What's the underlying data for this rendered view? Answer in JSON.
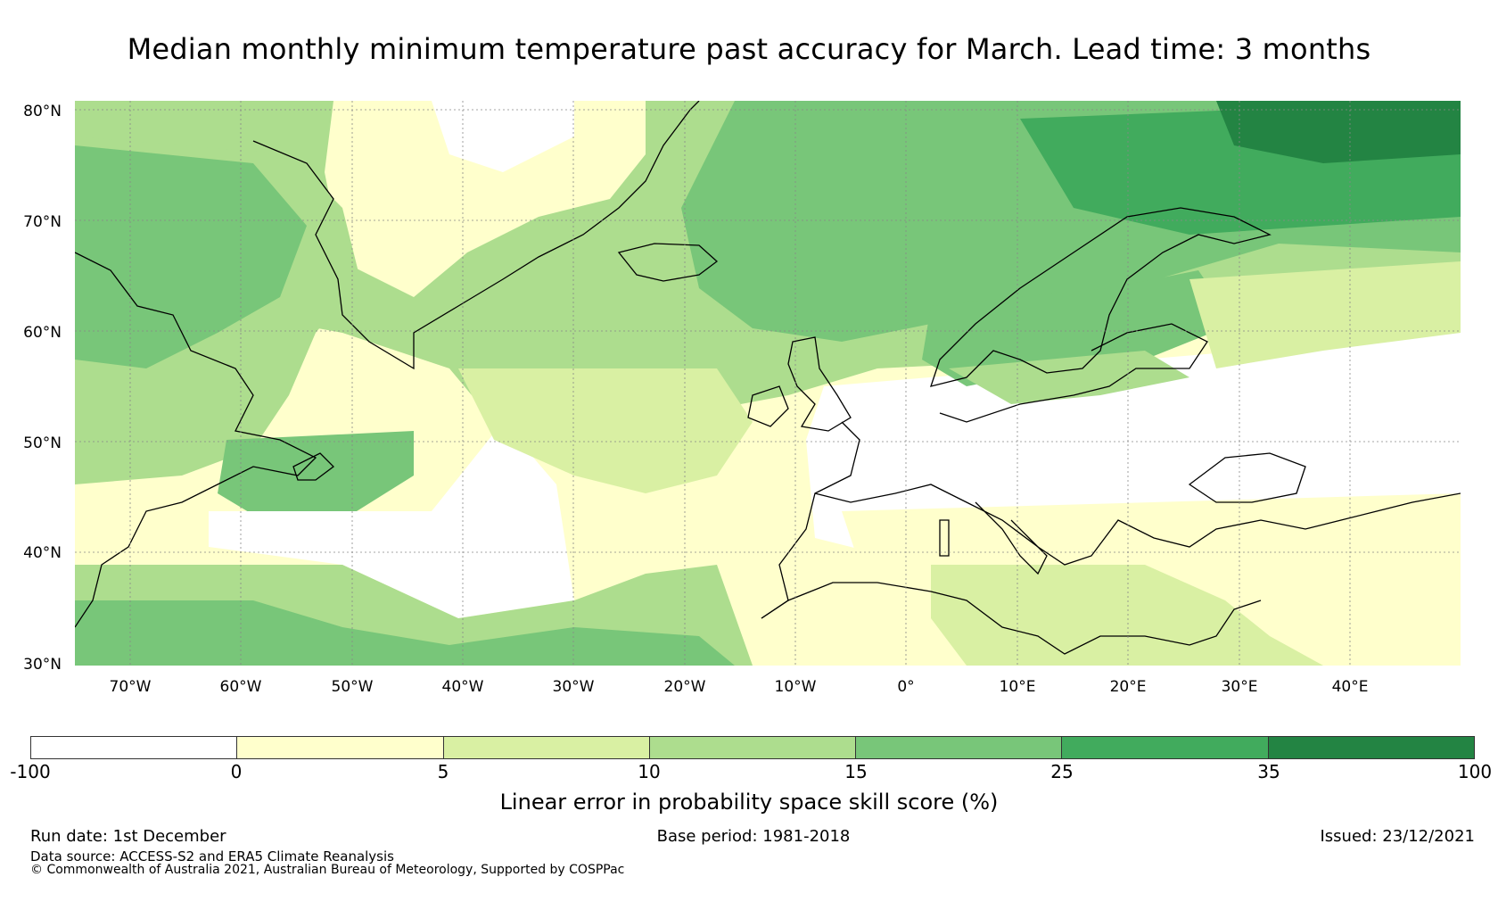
{
  "title": "Median monthly minimum temperature past accuracy for March. Lead time: 3 months",
  "map": {
    "latitude_labels": [
      "80°N",
      "70°N",
      "60°N",
      "50°N",
      "40°N",
      "30°N"
    ],
    "longitude_labels": [
      "70°W",
      "60°W",
      "50°W",
      "40°W",
      "30°W",
      "20°W",
      "10°W",
      "0°",
      "10°E",
      "20°E",
      "30°E",
      "40°E"
    ],
    "extent": {
      "lon_min": -75,
      "lon_max": 50,
      "lat_min": 30,
      "lat_max": 81
    }
  },
  "colorbar": {
    "label": "Linear error in probability space skill score (%)",
    "ticks": [
      "-100",
      "0",
      "5",
      "10",
      "15",
      "25",
      "35",
      "100"
    ],
    "colors": [
      "#ffffff",
      "#ffffcc",
      "#d9f0a3",
      "#addd8e",
      "#78c679",
      "#41ab5d",
      "#238443"
    ],
    "legend_ranges": [
      "-100 to 0",
      "0 to 5",
      "5 to 10",
      "10 to 15",
      "15 to 25",
      "25 to 35",
      "35 to 100"
    ]
  },
  "footer": {
    "run_date": "Run date: 1st December",
    "base_period": "Base period: 1981-2018",
    "issued": "Issued: 23/12/2021",
    "data_source": "Data source: ACCESS-S2 and ERA5 Climate Reanalysis",
    "copyright": "© Commonwealth of Australia 2021, Australian Bureau of Meteorology, Supported by COSPPac"
  }
}
